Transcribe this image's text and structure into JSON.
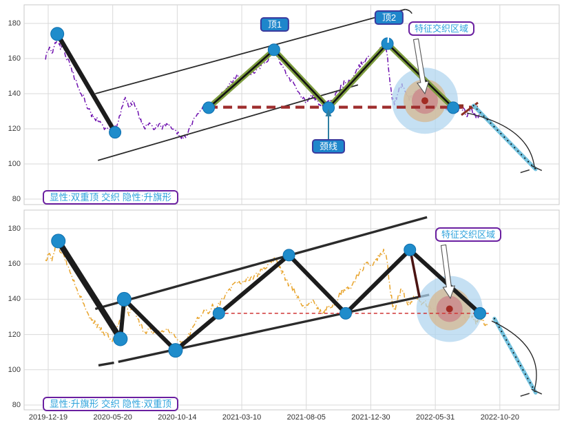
{
  "axes": {
    "y_ticks": [
      180,
      160,
      140,
      120,
      100,
      80
    ],
    "x_ticks": [
      "2019-12-19",
      "2020-05-20",
      "2020-10-14",
      "2021-03-10",
      "2021-08-05",
      "2021-12-30",
      "2022-05-31",
      "2022-10-20"
    ]
  },
  "colors": {
    "grid": "#d9d9d9",
    "panel_border": "#c9c9c9",
    "price_top": "#6d0fae",
    "price_bottom": "#e8a42c",
    "trend_black": "#1c1c1c",
    "pattern_green": "#7d9c3e",
    "neckline_red": "#9e2d2d",
    "thin_red": "#cf3333",
    "marker_blue": "#1f8ccb",
    "marker_edge": "#0e6fae",
    "projection_cyan": "#74c2de",
    "bull_outer": "#aed4ee",
    "bull_mid": "#d3bc9b",
    "bull_inner": "#cb8e8e",
    "bull_dot": "#a22b24",
    "label_blue_fill": "#1e86cb",
    "label_border_navy": "#3a3a9e",
    "zone_border_purple": "#6a1fa0",
    "zone_text_blue": "#2fa3dc"
  },
  "panels": [
    {
      "caption": "显性:双重顶 交织 隐性:升旗形",
      "labels": {
        "top1": "顶1",
        "top2": "顶2",
        "neckline": "颈线",
        "zone": "特征交织区域"
      }
    },
    {
      "caption": "显性:升旗形 交织 隐性:双重顶",
      "labels": {
        "zone": "特征交织区域"
      }
    }
  ],
  "chart_data": [
    {
      "type": "line",
      "title": "显性:双重顶 交织 隐性:升旗形",
      "x_ticks": [
        "2019-12-19",
        "2020-05-20",
        "2020-10-14",
        "2021-03-10",
        "2021-08-05",
        "2021-12-30",
        "2022-05-31",
        "2022-10-20"
      ],
      "y_ticks": [
        80,
        100,
        120,
        140,
        160,
        180
      ],
      "ylim": [
        74,
        192
      ],
      "grid": true,
      "initial_drop": [
        [
          0.062,
          174
        ],
        [
          0.17,
          118
        ]
      ],
      "pattern_points": [
        [
          0.345,
          132
        ],
        [
          0.467,
          165
        ],
        [
          0.569,
          132
        ],
        [
          0.679,
          168.5
        ],
        [
          0.802,
          132
        ]
      ],
      "markers": [
        [
          0.062,
          174
        ],
        [
          0.17,
          118
        ],
        [
          0.345,
          132
        ],
        [
          0.467,
          165
        ],
        [
          0.569,
          132
        ],
        [
          0.679,
          168.5
        ],
        [
          0.802,
          132
        ]
      ],
      "channel_upper": [
        [
          0.133,
          140
        ],
        [
          0.712,
          188
        ]
      ],
      "channel_lower": [
        [
          0.138,
          102
        ],
        [
          0.624,
          145
        ]
      ],
      "neckline_value": 132.3,
      "neckline_span": [
        0.345,
        0.856
      ],
      "projection": [
        [
          0.84,
          133.2
        ],
        [
          0.956,
          97
        ]
      ],
      "zone_center": [
        0.749,
        136
      ],
      "pivots_readable": [
        {
          "date": "2020-01",
          "price": 174
        },
        {
          "date": "2020-06",
          "price": 118
        },
        {
          "date": "2020-12",
          "price": 132
        },
        {
          "date": "2021-05",
          "price": 165
        },
        {
          "date": "2021-09",
          "price": 132
        },
        {
          "date": "2022-01",
          "price": 168
        },
        {
          "date": "2022-06",
          "price": 132
        }
      ],
      "projection_target": {
        "date": "2022-11",
        "price": 97
      }
    },
    {
      "type": "line",
      "title": "显性:升旗形 交织 隐性:双重顶",
      "x_ticks": [
        "2019-12-19",
        "2020-05-20",
        "2020-10-14",
        "2021-03-10",
        "2021-08-05",
        "2021-12-30",
        "2022-05-31",
        "2022-10-20"
      ],
      "y_ticks": [
        80,
        100,
        120,
        140,
        160,
        180
      ],
      "ylim": [
        74,
        192
      ],
      "grid": true,
      "zigzag": [
        [
          0.064,
          173
        ],
        [
          0.18,
          117.5
        ],
        [
          0.187,
          140
        ],
        [
          0.283,
          111
        ],
        [
          0.495,
          165
        ],
        [
          0.601,
          132
        ],
        [
          0.721,
          168
        ],
        [
          0.852,
          132
        ]
      ],
      "markers": [
        [
          0.064,
          173
        ],
        [
          0.18,
          117.5
        ],
        [
          0.187,
          140
        ],
        [
          0.283,
          111
        ],
        [
          0.364,
          132
        ],
        [
          0.495,
          165
        ],
        [
          0.601,
          132
        ],
        [
          0.721,
          168
        ],
        [
          0.852,
          132
        ]
      ],
      "drop_line": [
        [
          0.722,
          167.5
        ],
        [
          0.739,
          141
        ]
      ],
      "channel_upper": [
        [
          0.133,
          134.5
        ],
        [
          0.753,
          186.5
        ]
      ],
      "channel_lower_dash": [
        [
          0.139,
          102.5
        ],
        [
          0.168,
          104
        ]
      ],
      "channel_lower": [
        [
          0.176,
          104.5
        ],
        [
          0.757,
          142.5
        ]
      ],
      "neckline_value": 132,
      "neckline_span": [
        0.364,
        0.871
      ],
      "projection": [
        [
          0.879,
          129
        ],
        [
          0.956,
          87
        ]
      ],
      "zone_center": [
        0.795,
        134.5
      ],
      "pivots_readable": [
        {
          "date": "2020-01",
          "price": 173
        },
        {
          "date": "2020-06",
          "price": 117.5
        },
        {
          "date": "2020-06",
          "price": 140
        },
        {
          "date": "2020-10",
          "price": 111
        },
        {
          "date": "2021-07",
          "price": 165
        },
        {
          "date": "2021-10",
          "price": 132
        },
        {
          "date": "2022-02",
          "price": 168
        },
        {
          "date": "2022-07",
          "price": 132
        }
      ],
      "projection_target": {
        "date": "2022-11",
        "price": 87
      }
    }
  ],
  "price_anchors": [
    [
      0.04,
      161
    ],
    [
      0.046,
      166
    ],
    [
      0.052,
      162
    ],
    [
      0.058,
      169
    ],
    [
      0.063,
      173
    ],
    [
      0.068,
      165
    ],
    [
      0.073,
      167
    ],
    [
      0.08,
      160
    ],
    [
      0.088,
      155
    ],
    [
      0.095,
      149
    ],
    [
      0.103,
      143
    ],
    [
      0.11,
      139
    ],
    [
      0.118,
      133
    ],
    [
      0.126,
      128
    ],
    [
      0.134,
      126
    ],
    [
      0.142,
      123
    ],
    [
      0.15,
      121
    ],
    [
      0.158,
      119
    ],
    [
      0.165,
      117
    ],
    [
      0.172,
      122
    ],
    [
      0.18,
      128
    ],
    [
      0.186,
      135
    ],
    [
      0.19,
      137
    ],
    [
      0.196,
      132
    ],
    [
      0.203,
      136
    ],
    [
      0.21,
      131
    ],
    [
      0.218,
      125
    ],
    [
      0.226,
      121
    ],
    [
      0.234,
      124
    ],
    [
      0.242,
      120
    ],
    [
      0.25,
      122
    ],
    [
      0.258,
      121
    ],
    [
      0.266,
      123
    ],
    [
      0.274,
      121
    ],
    [
      0.282,
      119
    ],
    [
      0.29,
      116
    ],
    [
      0.298,
      114
    ],
    [
      0.306,
      118
    ],
    [
      0.314,
      124
    ],
    [
      0.322,
      128
    ],
    [
      0.33,
      131
    ],
    [
      0.338,
      134
    ],
    [
      0.346,
      133
    ],
    [
      0.352,
      136
    ],
    [
      0.358,
      133
    ],
    [
      0.366,
      138
    ],
    [
      0.374,
      141
    ],
    [
      0.382,
      144
    ],
    [
      0.39,
      147
    ],
    [
      0.398,
      150
    ],
    [
      0.406,
      149
    ],
    [
      0.414,
      151
    ],
    [
      0.422,
      152
    ],
    [
      0.43,
      152
    ],
    [
      0.438,
      155
    ],
    [
      0.446,
      157
    ],
    [
      0.454,
      159
    ],
    [
      0.462,
      162
    ],
    [
      0.468,
      163
    ],
    [
      0.474,
      160
    ],
    [
      0.48,
      157
    ],
    [
      0.486,
      153
    ],
    [
      0.494,
      149
    ],
    [
      0.502,
      146
    ],
    [
      0.51,
      142
    ],
    [
      0.518,
      138
    ],
    [
      0.526,
      135
    ],
    [
      0.534,
      137
    ],
    [
      0.54,
      139
    ],
    [
      0.546,
      136
    ],
    [
      0.552,
      133
    ],
    [
      0.558,
      132
    ],
    [
      0.564,
      134
    ],
    [
      0.572,
      135
    ],
    [
      0.58,
      138
    ],
    [
      0.588,
      142
    ],
    [
      0.596,
      145
    ],
    [
      0.604,
      148
    ],
    [
      0.61,
      146
    ],
    [
      0.618,
      151
    ],
    [
      0.626,
      155
    ],
    [
      0.634,
      158
    ],
    [
      0.642,
      161
    ],
    [
      0.65,
      159
    ],
    [
      0.658,
      162
    ],
    [
      0.666,
      165
    ],
    [
      0.672,
      167
    ],
    [
      0.678,
      163
    ],
    [
      0.683,
      149
    ],
    [
      0.688,
      138
    ],
    [
      0.692,
      133
    ],
    [
      0.696,
      138
    ],
    [
      0.7,
      142
    ],
    [
      0.705,
      145
    ],
    [
      0.71,
      142
    ],
    [
      0.715,
      139
    ],
    [
      0.72,
      137
    ],
    [
      0.726,
      140
    ],
    [
      0.732,
      142
    ],
    [
      0.738,
      139
    ],
    [
      0.744,
      137
    ],
    [
      0.75,
      138
    ],
    [
      0.756,
      136
    ],
    [
      0.762,
      135
    ],
    [
      0.768,
      133
    ],
    [
      0.774,
      132
    ],
    [
      0.78,
      131
    ],
    [
      0.786,
      133
    ],
    [
      0.792,
      131
    ],
    [
      0.798,
      130
    ],
    [
      0.804,
      132
    ],
    [
      0.81,
      131
    ],
    [
      0.816,
      133
    ],
    [
      0.822,
      130
    ],
    [
      0.828,
      128
    ],
    [
      0.834,
      131
    ],
    [
      0.84,
      129
    ],
    [
      0.846,
      127
    ],
    [
      0.852,
      129
    ],
    [
      0.86,
      127
    ],
    [
      0.868,
      125
    ]
  ]
}
